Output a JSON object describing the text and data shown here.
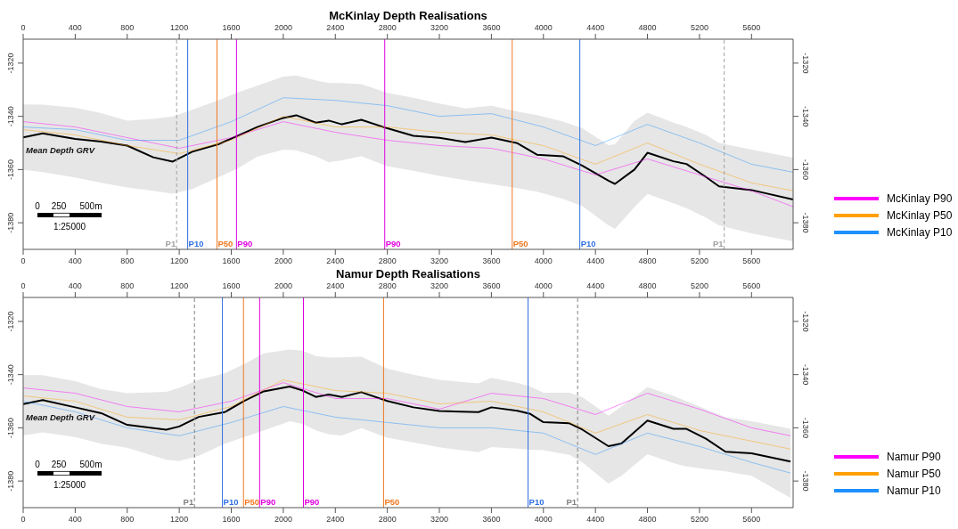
{
  "chart_data": [
    {
      "type": "line",
      "title": "McKinlay Depth Realisations",
      "marker": "none",
      "legend": "right",
      "xlim": [
        0,
        5920
      ],
      "xticks": [
        0,
        400,
        800,
        1200,
        1600,
        2000,
        2400,
        2800,
        3200,
        3600,
        4000,
        4400,
        4800,
        5200,
        5600
      ],
      "x2lim": [
        0,
        5920
      ],
      "x2ticks": [
        0,
        400,
        800,
        1200,
        1600,
        2000,
        2400,
        2800,
        3200,
        3600,
        4000,
        4400,
        4800,
        5200,
        5600
      ],
      "ylim": [
        -1390,
        -1311
      ],
      "yticks": [
        -1380,
        -1360,
        -1340,
        -1320
      ],
      "y2lim": [
        -1390,
        -1311
      ],
      "y2ticks": [
        -1380,
        -1360,
        -1340,
        -1320
      ],
      "series": [
        {
          "name": "Mean Depth GRV",
          "color": "#000000",
          "x": [
            0,
            150,
            400,
            600,
            800,
            1000,
            1150,
            1300,
            1500,
            1650,
            1800,
            2000,
            2100,
            2250,
            2350,
            2450,
            2600,
            2800,
            3000,
            3200,
            3400,
            3600,
            3800,
            3950,
            4150,
            4300,
            4500,
            4550,
            4700,
            4800,
            5000,
            5100,
            5250,
            5350,
            5600,
            5920
          ],
          "values": [
            -1347.9,
            -1346.4,
            -1348.5,
            -1349.5,
            -1351,
            -1355.4,
            -1357,
            -1353.3,
            -1350.5,
            -1347.3,
            -1344,
            -1340.6,
            -1339.6,
            -1342.4,
            -1341.6,
            -1343,
            -1341.3,
            -1344.5,
            -1347.3,
            -1348.1,
            -1349.7,
            -1348,
            -1350.1,
            -1354.4,
            -1355,
            -1358.6,
            -1364.2,
            -1365.4,
            -1360,
            -1353.7,
            -1356.9,
            -1357.9,
            -1362.8,
            -1366.3,
            -1367.7,
            -1371.3
          ],
          "upper": [
            -1335.5,
            -1335.6,
            -1336.8,
            -1338.8,
            -1341.6,
            -1341,
            -1340,
            -1337.5,
            -1334,
            -1331,
            -1328.5,
            -1325.1,
            -1324.6,
            -1326.5,
            -1327.5,
            -1327.5,
            -1327.9,
            -1331.2,
            -1333,
            -1335.2,
            -1337,
            -1336,
            -1338.2,
            -1339.5,
            -1342,
            -1344.5,
            -1350.8,
            -1350.5,
            -1341.7,
            -1338.6,
            -1342.4,
            -1344,
            -1347,
            -1350,
            -1352.5,
            -1355.5
          ],
          "lower": [
            -1360,
            -1361,
            -1363,
            -1365,
            -1366.7,
            -1368,
            -1369.1,
            -1367.3,
            -1363,
            -1359.5,
            -1355.2,
            -1352.5,
            -1352.8,
            -1355,
            -1357.3,
            -1356.5,
            -1354.9,
            -1358.8,
            -1360.5,
            -1362.4,
            -1364,
            -1365.5,
            -1367,
            -1368.3,
            -1371,
            -1373.8,
            -1381,
            -1382.3,
            -1374.1,
            -1369.2,
            -1372.7,
            -1374.5,
            -1378,
            -1381,
            -1384,
            -1387
          ]
        },
        {
          "name": "McKinlay P90",
          "color": "#ff00ff",
          "x": [
            0,
            400,
            800,
            1200,
            1600,
            2000,
            2400,
            2800,
            3200,
            3600,
            4000,
            4400,
            4800,
            5200,
            5600,
            5920
          ],
          "values": [
            -1342,
            -1344,
            -1348,
            -1352,
            -1348,
            -1342,
            -1346,
            -1349,
            -1351,
            -1352,
            -1356,
            -1362,
            -1356,
            -1362,
            -1368,
            -1374
          ]
        },
        {
          "name": "McKinlay P50",
          "color": "#ffa000",
          "x": [
            0,
            400,
            800,
            1200,
            1600,
            2000,
            2400,
            2800,
            3200,
            3600,
            4000,
            4400,
            4800,
            5200,
            5600,
            5920
          ],
          "values": [
            -1345,
            -1347,
            -1351,
            -1354,
            -1349,
            -1340,
            -1344,
            -1344,
            -1346,
            -1347,
            -1351,
            -1358,
            -1350,
            -1358,
            -1365,
            -1368
          ]
        },
        {
          "name": "McKinlay P10",
          "color": "#1e90ff",
          "x": [
            0,
            400,
            800,
            1200,
            1600,
            2000,
            2400,
            2800,
            3200,
            3600,
            4000,
            4400,
            4800,
            5200,
            5600,
            5920
          ],
          "values": [
            -1344,
            -1345,
            -1349,
            -1349,
            -1342,
            -1333,
            -1334,
            -1336,
            -1340,
            -1339,
            -1344,
            -1351,
            -1343,
            -1350,
            -1358,
            -1361
          ]
        }
      ],
      "ref_lines": [
        {
          "axis": "x",
          "value": 1180,
          "label": "P1",
          "color": "#a0a0a0",
          "line_style": "dashed"
        },
        {
          "axis": "x",
          "value": 1265,
          "label": "P10",
          "color": "#2f6fe0",
          "line_style": "solid"
        },
        {
          "axis": "x",
          "value": 1490,
          "label": "P50",
          "color": "#f07820",
          "line_style": "solid"
        },
        {
          "axis": "x",
          "value": 1640,
          "label": "P90",
          "color": "#e000e0",
          "line_style": "solid"
        },
        {
          "axis": "x",
          "value": 2780,
          "label": "P90",
          "color": "#e000e0",
          "line_style": "solid"
        },
        {
          "axis": "x",
          "value": 3760,
          "label": "P50",
          "color": "#f07820",
          "line_style": "solid"
        },
        {
          "axis": "x",
          "value": 4280,
          "label": "P10",
          "color": "#2f6fe0",
          "line_style": "solid"
        },
        {
          "axis": "x",
          "value": 5390,
          "label": "P1",
          "color": "#a0a0a0",
          "line_style": "dashed"
        }
      ],
      "annotations": [
        "0",
        "250",
        "500m",
        "1:25000"
      ]
    },
    {
      "type": "line",
      "title": "Namur Depth Realisations",
      "marker": "none",
      "legend": "right",
      "xlim": [
        0,
        5920
      ],
      "xticks": [
        0,
        400,
        800,
        1200,
        1600,
        2000,
        2400,
        2800,
        3200,
        3600,
        4000,
        4400,
        4800,
        5200,
        5600
      ],
      "x2lim": [
        0,
        5920
      ],
      "x2ticks": [
        0,
        400,
        800,
        1200,
        1600,
        2000,
        2400,
        2800,
        3200,
        3600,
        4000,
        4400,
        4800,
        5200,
        5600
      ],
      "ylim": [
        -1390,
        -1311
      ],
      "yticks": [
        -1380,
        -1360,
        -1340,
        -1320
      ],
      "y2lim": [
        -1390,
        -1311
      ],
      "y2ticks": [
        -1380,
        -1360,
        -1340,
        -1320
      ],
      "series": [
        {
          "name": "Mean Depth GRV",
          "color": "#000000",
          "x": [
            0,
            150,
            400,
            600,
            800,
            1100,
            1200,
            1350,
            1550,
            1700,
            1850,
            2050,
            2150,
            2250,
            2350,
            2450,
            2600,
            2800,
            3000,
            3200,
            3500,
            3600,
            3800,
            3900,
            4000,
            4200,
            4300,
            4500,
            4600,
            4800,
            5000,
            5100,
            5250,
            5400,
            5600,
            5900
          ],
          "values": [
            -1351.1,
            -1349.6,
            -1352.3,
            -1354.5,
            -1358.9,
            -1360.7,
            -1359.5,
            -1355.9,
            -1354.1,
            -1349.9,
            -1346.3,
            -1344.5,
            -1346,
            -1348.4,
            -1347.5,
            -1348.4,
            -1346.6,
            -1349.9,
            -1352.3,
            -1353.7,
            -1354.1,
            -1352.3,
            -1353.6,
            -1354.8,
            -1357.9,
            -1358.3,
            -1360.7,
            -1366.9,
            -1365.9,
            -1357.3,
            -1360.4,
            -1360.4,
            -1364.1,
            -1369,
            -1369.6,
            -1372.7
          ],
          "upper": [
            -1340.2,
            -1340.2,
            -1342.5,
            -1345.5,
            -1347,
            -1346.5,
            -1345,
            -1342,
            -1339.5,
            -1336,
            -1332,
            -1330.6,
            -1331,
            -1333,
            -1333.6,
            -1333.5,
            -1333.3,
            -1337.8,
            -1340,
            -1342,
            -1343.3,
            -1341.2,
            -1343.1,
            -1344.5,
            -1346.8,
            -1346.8,
            -1348.5,
            -1355.4,
            -1352,
            -1344.7,
            -1348,
            -1350,
            -1353,
            -1356,
            -1357.5,
            -1360.4
          ],
          "lower": [
            -1362.9,
            -1361.7,
            -1363.5,
            -1366,
            -1367.5,
            -1372,
            -1372.5,
            -1370.5,
            -1366,
            -1363.5,
            -1361,
            -1357.5,
            -1358.5,
            -1361,
            -1362.5,
            -1362.9,
            -1360.1,
            -1363.7,
            -1365.5,
            -1367.3,
            -1369.2,
            -1367.2,
            -1367.8,
            -1368.2,
            -1368.4,
            -1370.2,
            -1373,
            -1381,
            -1378,
            -1369.9,
            -1373.3,
            -1374.5,
            -1375.5,
            -1376.4,
            -1378,
            -1386.3
          ]
        },
        {
          "name": "Namur P90",
          "color": "#ff00ff",
          "x": [
            0,
            400,
            800,
            1200,
            1600,
            2000,
            2400,
            2800,
            3200,
            3600,
            4000,
            4400,
            4800,
            5200,
            5600,
            5900
          ],
          "values": [
            -1345,
            -1347,
            -1352,
            -1354,
            -1350,
            -1343,
            -1349,
            -1349,
            -1353,
            -1347,
            -1349,
            -1355,
            -1347,
            -1353,
            -1360,
            -1363
          ]
        },
        {
          "name": "Namur P50",
          "color": "#ffa000",
          "x": [
            0,
            400,
            800,
            1200,
            1600,
            2000,
            2400,
            2800,
            3200,
            3600,
            4000,
            4400,
            4800,
            5200,
            5600,
            5900
          ],
          "values": [
            -1348,
            -1350,
            -1356,
            -1357,
            -1352,
            -1342,
            -1346,
            -1347,
            -1351,
            -1350,
            -1354,
            -1362,
            -1355,
            -1361,
            -1365,
            -1368
          ]
        },
        {
          "name": "Namur P10",
          "color": "#1e90ff",
          "x": [
            0,
            400,
            800,
            1200,
            1600,
            2000,
            2400,
            2800,
            3200,
            3600,
            4000,
            4400,
            4800,
            5200,
            5600,
            5900
          ],
          "values": [
            -1350,
            -1354,
            -1360,
            -1363,
            -1358,
            -1352,
            -1356,
            -1358,
            -1360,
            -1360,
            -1362,
            -1370,
            -1362,
            -1367,
            -1373,
            -1377
          ]
        }
      ],
      "ref_lines": [
        {
          "axis": "x",
          "value": 1317,
          "label": "P1",
          "color": "#808080",
          "line_style": "dashed"
        },
        {
          "axis": "x",
          "value": 1532,
          "label": "P10",
          "color": "#2f6fe0",
          "line_style": "solid"
        },
        {
          "axis": "x",
          "value": 1694,
          "label": "P50",
          "color": "#f07820",
          "line_style": "solid"
        },
        {
          "axis": "x",
          "value": 1818,
          "label": "P90",
          "color": "#e000e0",
          "line_style": "solid"
        },
        {
          "axis": "x",
          "value": 2155,
          "label": "P90",
          "color": "#e000e0",
          "line_style": "solid"
        },
        {
          "axis": "x",
          "value": 2771,
          "label": "P50",
          "color": "#f07820",
          "line_style": "solid"
        },
        {
          "axis": "x",
          "value": 3882,
          "label": "P10",
          "color": "#2f6fe0",
          "line_style": "solid"
        },
        {
          "axis": "x",
          "value": 4263,
          "label": "P1",
          "color": "#808080",
          "line_style": "dashed"
        }
      ],
      "annotations": [
        "0",
        "250",
        "500m",
        "1:25000"
      ]
    }
  ]
}
